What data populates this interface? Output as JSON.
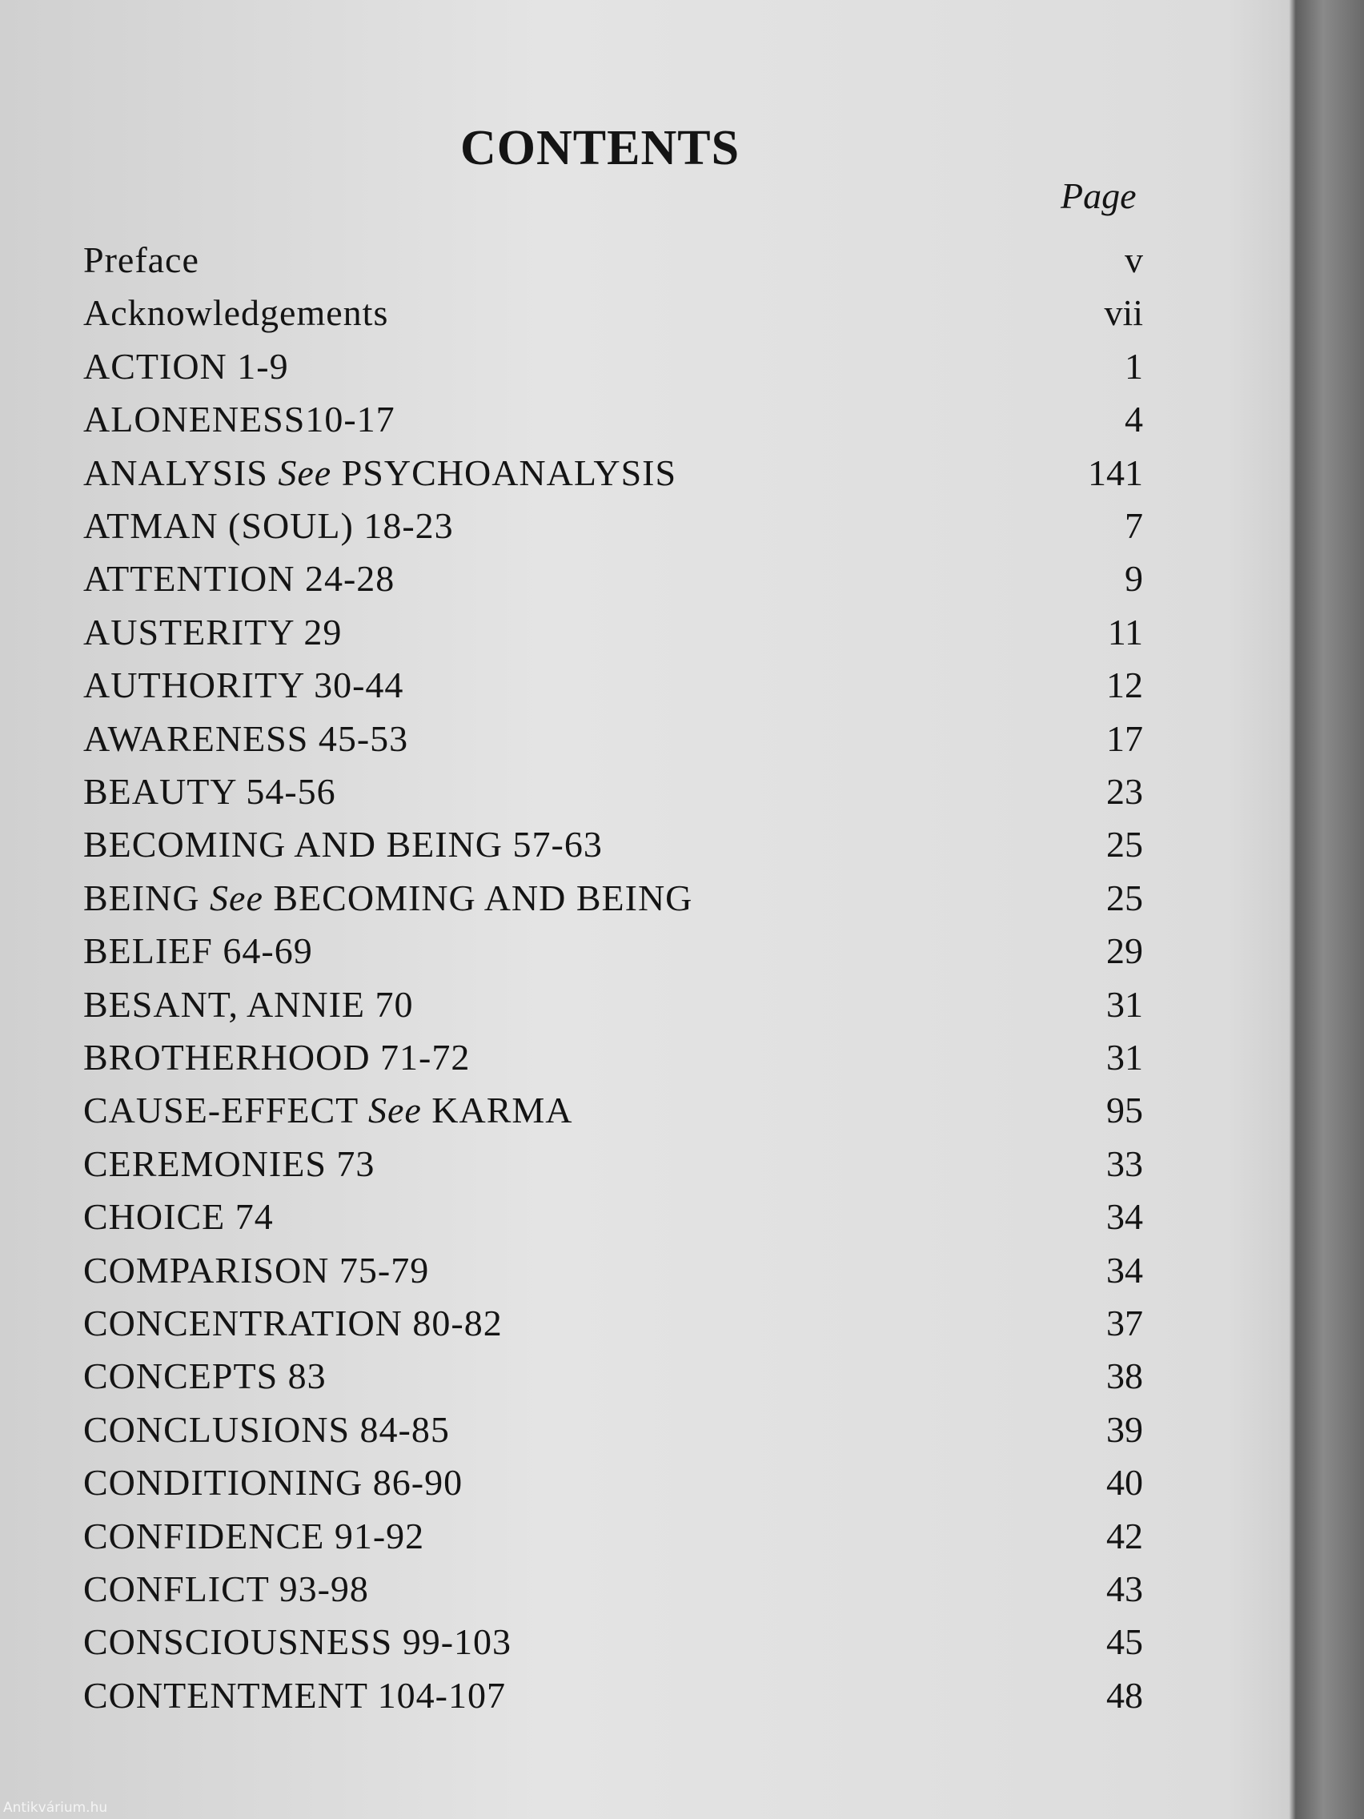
{
  "header": {
    "title": "CONTENTS",
    "page_column": "Page"
  },
  "entries": [
    {
      "label": "Preface",
      "page": "v"
    },
    {
      "label": "Acknowledgements",
      "page": "vii"
    },
    {
      "label": "ACTION 1-9",
      "page": "1"
    },
    {
      "label": "ALONENESS10-17",
      "page": "4"
    },
    {
      "label": "ANALYSIS",
      "see": "See",
      "target": "PSYCHOANALYSIS",
      "page": "141"
    },
    {
      "label": "ATMAN (SOUL) 18-23",
      "page": "7"
    },
    {
      "label": "ATTENTION 24-28",
      "page": "9"
    },
    {
      "label": "AUSTERITY 29",
      "page": "11"
    },
    {
      "label": "AUTHORITY 30-44",
      "page": "12"
    },
    {
      "label": "AWARENESS 45-53",
      "page": "17"
    },
    {
      "label": "BEAUTY 54-56",
      "page": "23"
    },
    {
      "label": "BECOMING AND BEING 57-63",
      "page": "25"
    },
    {
      "label": "BEING",
      "see": "See",
      "target": "BECOMING AND BEING",
      "page": "25"
    },
    {
      "label": "BELIEF 64-69",
      "page": "29"
    },
    {
      "label": "BESANT, ANNIE 70",
      "page": "31"
    },
    {
      "label": "BROTHERHOOD 71-72",
      "page": "31"
    },
    {
      "label": "CAUSE-EFFECT",
      "see": "See",
      "target": "KARMA",
      "page": "95"
    },
    {
      "label": "CEREMONIES 73",
      "page": "33"
    },
    {
      "label": "CHOICE 74",
      "page": "34"
    },
    {
      "label": "COMPARISON 75-79",
      "page": "34"
    },
    {
      "label": "CONCENTRATION 80-82",
      "page": "37"
    },
    {
      "label": "CONCEPTS 83",
      "page": "38"
    },
    {
      "label": "CONCLUSIONS 84-85",
      "page": "39"
    },
    {
      "label": "CONDITIONING 86-90",
      "page": "40"
    },
    {
      "label": "CONFIDENCE 91-92",
      "page": "42"
    },
    {
      "label": "CONFLICT 93-98",
      "page": "43"
    },
    {
      "label": "CONSCIOUSNESS 99-103",
      "page": "45"
    },
    {
      "label": "CONTENTMENT 104-107",
      "page": "48"
    }
  ],
  "watermark": "Antikvárium.hu"
}
